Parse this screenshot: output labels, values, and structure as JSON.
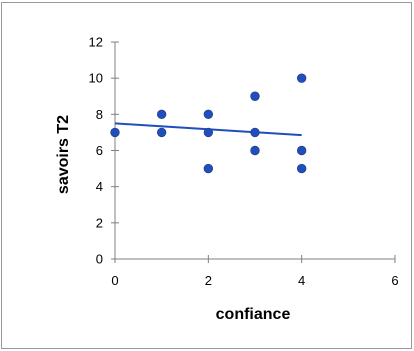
{
  "chart_data": {
    "type": "scatter",
    "title": "",
    "xlabel": "confiance",
    "ylabel": "savoirs T2",
    "xlim": [
      0,
      6
    ],
    "ylim": [
      0,
      12
    ],
    "x_ticks": [
      0,
      2,
      4,
      6
    ],
    "y_ticks": [
      0,
      2,
      4,
      6,
      8,
      10,
      12
    ],
    "grid": false,
    "legend": "none",
    "series": [
      {
        "points": [
          {
            "x": 0,
            "y": 7
          },
          {
            "x": 1,
            "y": 8
          },
          {
            "x": 1,
            "y": 7
          },
          {
            "x": 2,
            "y": 8
          },
          {
            "x": 2,
            "y": 7
          },
          {
            "x": 2,
            "y": 5
          },
          {
            "x": 3,
            "y": 9
          },
          {
            "x": 3,
            "y": 7
          },
          {
            "x": 3,
            "y": 6
          },
          {
            "x": 4,
            "y": 10
          },
          {
            "x": 4,
            "y": 6
          },
          {
            "x": 4,
            "y": 5
          }
        ],
        "color": "#1f4fbf"
      }
    ],
    "trendline": {
      "type": "linear",
      "x_start": 0,
      "y_start": 7.5,
      "x_end": 4,
      "y_end": 6.85,
      "color": "#1f4fbf"
    },
    "axis_color": "#808080"
  }
}
